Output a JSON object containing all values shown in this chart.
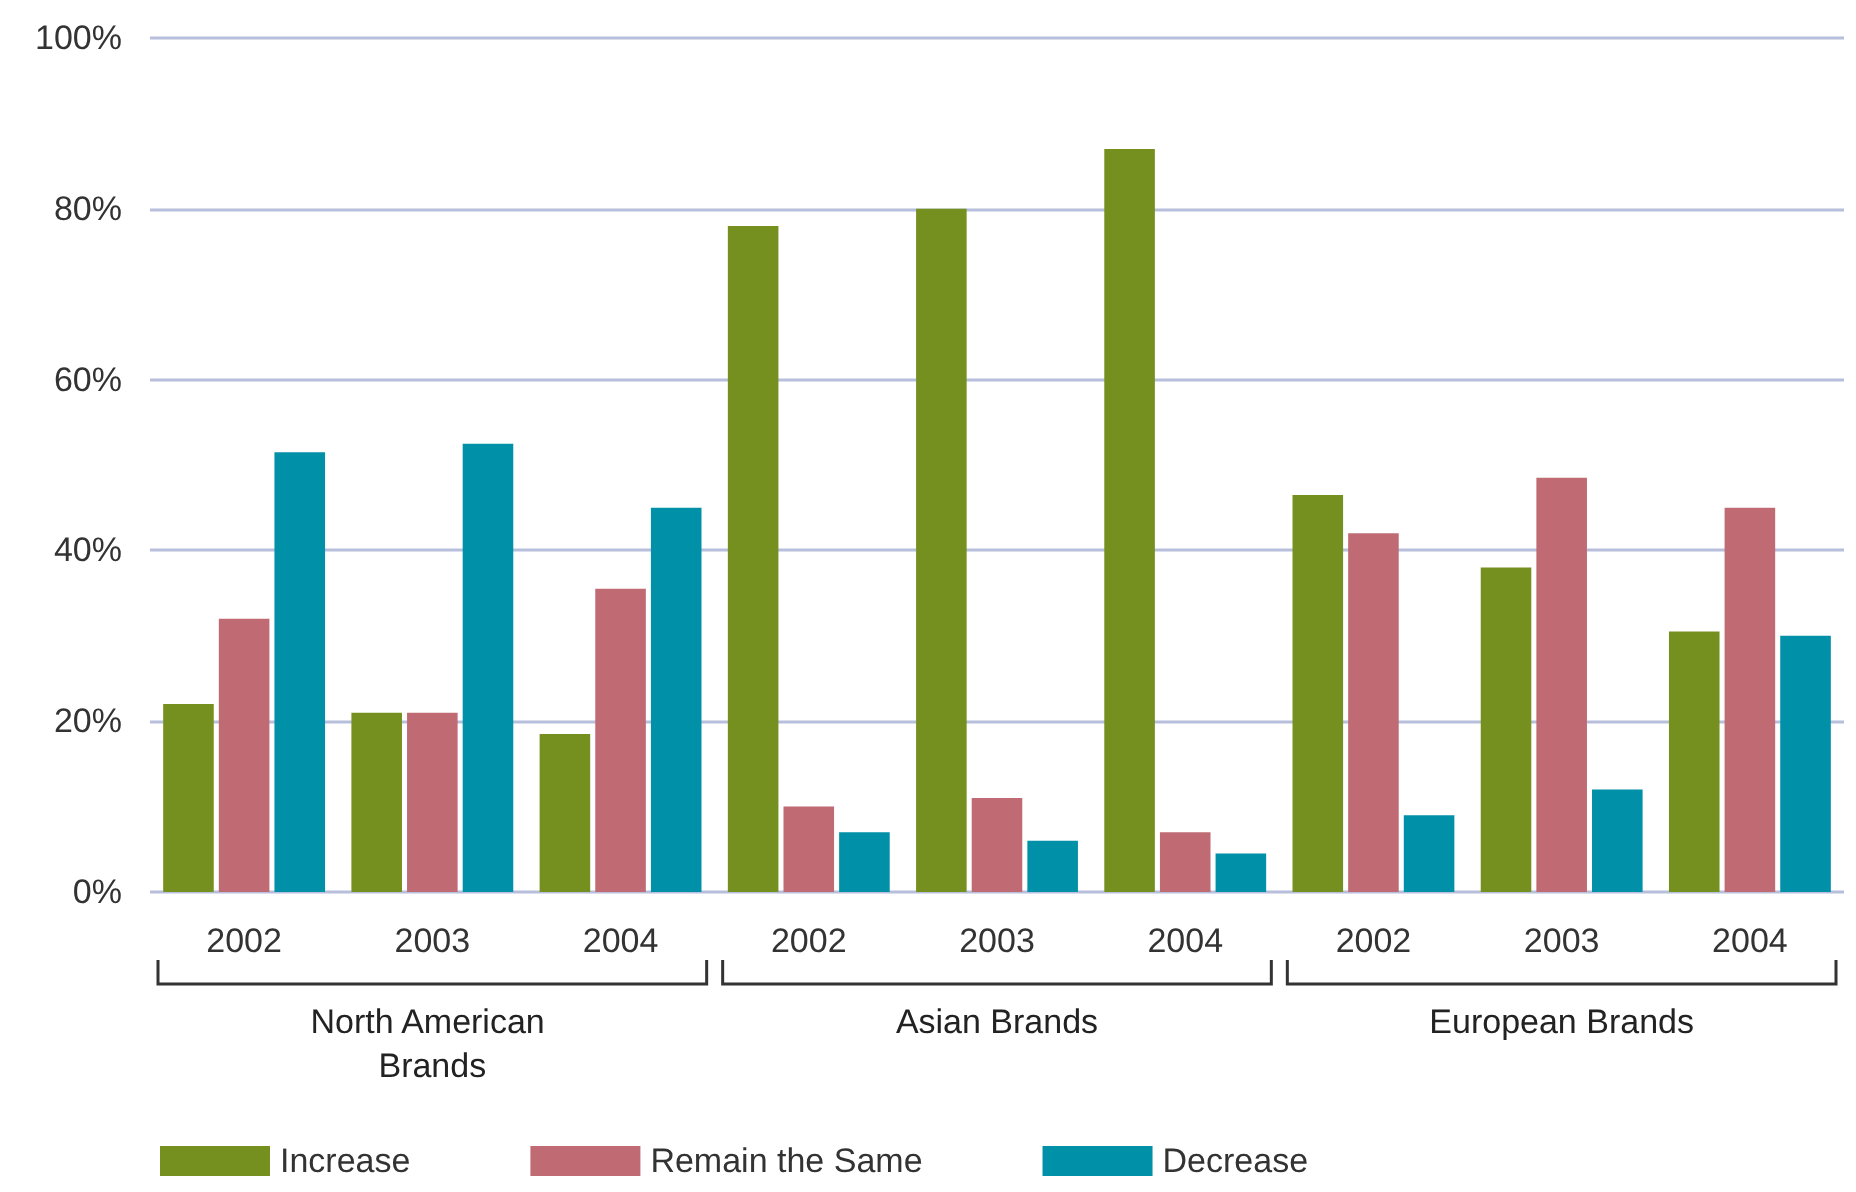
{
  "chart_data": {
    "type": "bar",
    "categories": [
      "2002",
      "2003",
      "2004",
      "2002",
      "2003",
      "2004",
      "2002",
      "2003",
      "2004"
    ],
    "series": [
      {
        "name": "Increase",
        "color": "#76901f",
        "values": [
          22,
          21,
          18.5,
          78,
          80,
          87,
          46.5,
          38,
          30.5
        ]
      },
      {
        "name": "Remain the Same",
        "color": "#c06b74",
        "values": [
          32,
          21,
          35.5,
          10,
          11,
          7,
          42,
          48.5,
          45
        ]
      },
      {
        "name": "Decrease",
        "color": "#0090a8",
        "values": [
          51.5,
          52.5,
          45,
          7,
          6,
          4.5,
          9,
          12,
          30
        ]
      }
    ],
    "ylim": [
      0,
      100
    ],
    "yticks": [
      {
        "value": 0,
        "label": "0%"
      },
      {
        "value": 20,
        "label": "20%"
      },
      {
        "value": 40,
        "label": "40%"
      },
      {
        "value": 60,
        "label": "60%"
      },
      {
        "value": 80,
        "label": "80%"
      },
      {
        "value": 100,
        "label": "100%"
      }
    ],
    "grid": "y",
    "legend": "bottom left",
    "annotations": [
      "North American Brands",
      "Asian Brands",
      "European Brands"
    ]
  }
}
